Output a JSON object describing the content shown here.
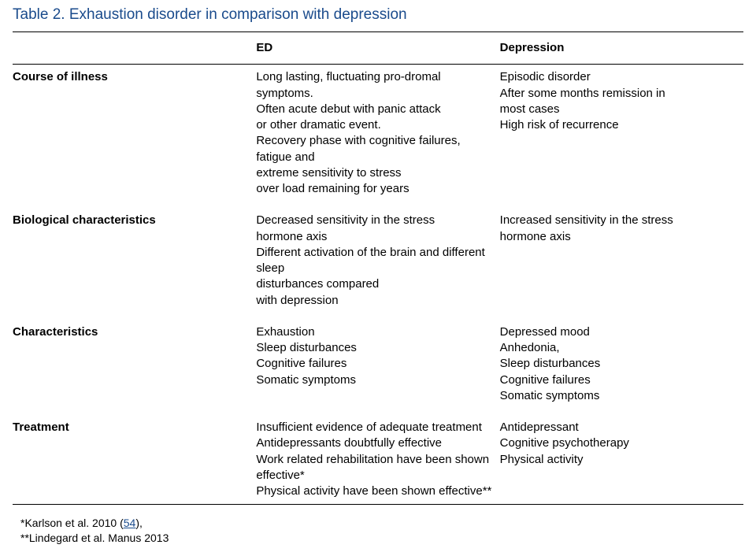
{
  "title": "Table 2. Exhaustion disorder in comparison with depression",
  "headers": {
    "label": "",
    "ed": "ED",
    "dep": "Depression"
  },
  "rows": {
    "course": {
      "label": "Course of illness",
      "ed": "Long lasting, fluctuating pro-dromal symptoms.\nOften acute debut with panic attack\nor other dramatic event.\nRecovery phase with cognitive failures, fatigue and\nextreme sensitivity to stress\nover load remaining for years",
      "dep": "Episodic disorder\nAfter some months remission in\nmost cases\nHigh risk of recurrence"
    },
    "bio": {
      "label": "Biological characteristics",
      "ed": "Decreased sensitivity in the stress\nhormone axis\nDifferent activation of the brain and different sleep\ndisturbances compared\nwith depression",
      "dep": "Increased sensitivity in the stress\nhormone axis"
    },
    "char": {
      "label": "Characteristics",
      "ed": "Exhaustion\nSleep disturbances\nCognitive failures\nSomatic symptoms",
      "dep": "Depressed mood\nAnhedonia,\nSleep disturbances\nCognitive failures\nSomatic symptoms"
    },
    "treat": {
      "label": "Treatment",
      "ed": "Insufficient evidence of adequate treatment\nAntidepressants doubtfully effective\nWork related rehabilitation have been shown effective*\nPhysical activity have been shown effective**",
      "dep": "Antidepressant\nCognitive psychotherapy\nPhysical activity"
    }
  },
  "footnotes": {
    "line1_pre": "*Karlson et al. 2010 (",
    "line1_link": "54",
    "line1_post": "),",
    "line2": "**Lindegard et al. Manus 2013"
  },
  "colors": {
    "title": "#1a4b8c",
    "link": "#1a4b8c",
    "text": "#000000",
    "rule": "#000000",
    "bg": "#ffffff"
  }
}
